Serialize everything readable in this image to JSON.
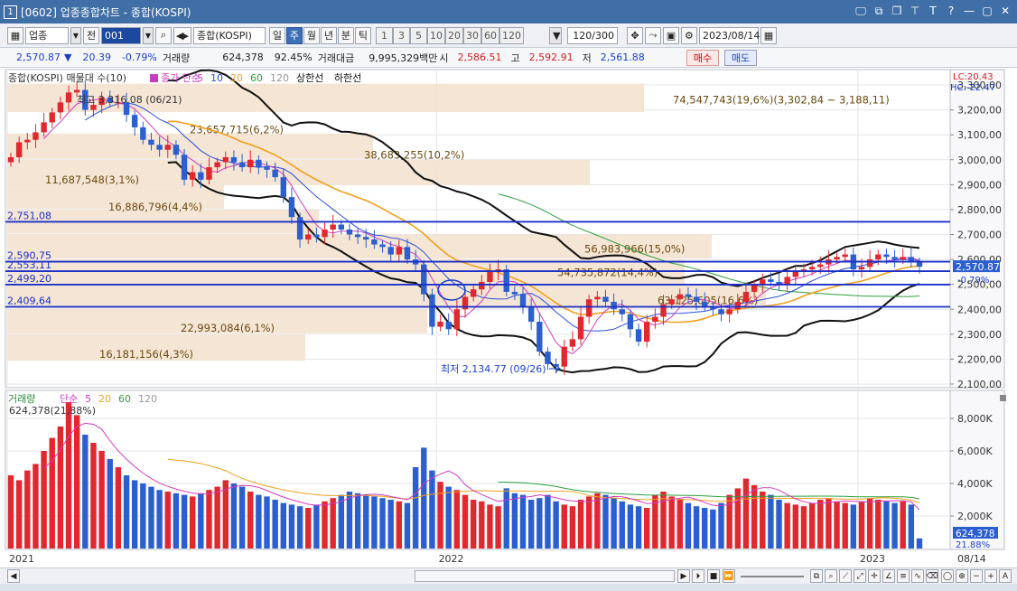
{
  "window": {
    "num_badge": "1",
    "title": "[0602] 업종종합차트 - 종합(KOSPI)",
    "icons": [
      "monitor-icon",
      "restore-icon",
      "copy-icon",
      "pin-icon",
      "text-icon",
      "help-icon",
      "minimize-icon",
      "maximize-icon",
      "close-icon"
    ],
    "icon_glyphs": [
      "🖵",
      "⧉",
      "❐",
      "⊤",
      "T",
      "?",
      "—",
      "▢",
      "✕"
    ]
  },
  "toolbar": {
    "market_label": "업종",
    "pre_label": "전",
    "code_value": "001",
    "name_value": "종합(KOSPI)",
    "periods": [
      "일",
      "주",
      "월",
      "년",
      "분",
      "틱"
    ],
    "active_period": "주",
    "intervals": [
      "1",
      "3",
      "5",
      "10",
      "20",
      "30",
      "60",
      "120"
    ],
    "count_value": "120/300",
    "date_value": "2023/08/14"
  },
  "quote": {
    "price": "2,570.87",
    "change_arrow": "▼",
    "change": "20.39",
    "change_pct": "-0.79%",
    "volume_label": "거래량",
    "volume": "624,378",
    "volume_ratio": "92.45%",
    "amount_label": "거래대금",
    "amount": "9,995,329백만",
    "open_label": "시",
    "open": "2,586.51",
    "high_label": "고",
    "high": "2,592.91",
    "low_label": "저",
    "low": "2,561.88",
    "buy_label": "매수",
    "sell_label": "매도"
  },
  "price_panel": {
    "legend_title": "종합(KOSPI) 매물대 수(10)",
    "ma_label": "종가 단순",
    "ma_periods": [
      "5",
      "10",
      "20",
      "60",
      "120"
    ],
    "band_labels": [
      "상한선",
      "하한선"
    ],
    "lc_label": "LC:20.43",
    "hc_label": "HC:-22.47",
    "high_annot": "최고 3,316.08 (06/21)",
    "low_annot": "최저 2,134.77 (09/26)",
    "current_price_tag": "2,570.87",
    "current_change_tag": "-0.79%",
    "y_ticks": [
      "3,300,00",
      "3,200,00",
      "3,100,00",
      "3,000,00",
      "2,900,00",
      "2,800,00",
      "2,700,00",
      "2,600,00",
      "2,500,00",
      "2,400,00",
      "2,300,00",
      "2,200,00",
      "2,100,00"
    ],
    "h_lines": [
      "2,751,08",
      "2,590,75",
      "2,553,11",
      "2,499,20",
      "2,409,64"
    ],
    "volume_profile": [
      "74,547,743(19,6%)(3,302,84 ~ 3,188,11)",
      "23,657,715(6,2%)",
      "38,683,255(10,2%)",
      "11,687,548(3,1%)",
      "16,886,796(4,4%)",
      "56,983,966(15,0%)",
      "54,735,872(14,4%)",
      "63,125,605(16,6%)",
      "22,993,084(6,1%)",
      "16,181,156(4,3%)"
    ]
  },
  "volume_panel": {
    "legend_title": "거래량",
    "ma_label": "단순",
    "ma_periods": [
      "5",
      "20",
      "60",
      "120"
    ],
    "max_annot": "624,378(21,88%)",
    "y_ticks": [
      "8,000K",
      "6,000K",
      "4,000K",
      "2,000K"
    ],
    "current_tag": "624,378",
    "current_pct_tag": "21.88%"
  },
  "x_axis": {
    "labels": [
      "2021",
      "2022",
      "2023",
      "08/14"
    ]
  },
  "chart_data": {
    "type": "candlestick",
    "period": "weekly",
    "ylim": [
      2100,
      3340
    ],
    "y_tick_values": [
      3300,
      3200,
      3100,
      3000,
      2900,
      2800,
      2700,
      2600,
      2500,
      2400,
      2300,
      2200,
      2100
    ],
    "series_close": [
      3010,
      3070,
      3080,
      3110,
      3150,
      3190,
      3230,
      3270,
      3280,
      3200,
      3220,
      3250,
      3230,
      3230,
      3180,
      3130,
      3080,
      3060,
      3040,
      3060,
      3020,
      2920,
      2950,
      2920,
      2970,
      2990,
      3010,
      2990,
      2970,
      3000,
      2970,
      2960,
      2930,
      2850,
      2770,
      2680,
      2700,
      2690,
      2720,
      2740,
      2720,
      2700,
      2690,
      2680,
      2660,
      2650,
      2620,
      2650,
      2600,
      2580,
      2460,
      2330,
      2350,
      2320,
      2400,
      2450,
      2480,
      2510,
      2550,
      2560,
      2470,
      2460,
      2410,
      2350,
      2230,
      2180,
      2170,
      2250,
      2280,
      2370,
      2440,
      2450,
      2430,
      2400,
      2380,
      2320,
      2270,
      2350,
      2370,
      2420,
      2440,
      2460,
      2450,
      2430,
      2410,
      2400,
      2380,
      2400,
      2430,
      2470,
      2500,
      2520,
      2510,
      2500,
      2530,
      2550,
      2560,
      2570,
      2580,
      2600,
      2610,
      2620,
      2560,
      2570,
      2600,
      2620,
      2610,
      2600,
      2610,
      2590,
      2571
    ],
    "volume_max_k": 9000,
    "series_volume_k": [
      4500,
      4200,
      4800,
      5200,
      6000,
      6800,
      7500,
      9000,
      8200,
      7000,
      6500,
      6000,
      5500,
      5000,
      4500,
      4200,
      4000,
      3800,
      3600,
      3500,
      3400,
      3300,
      3200,
      3400,
      3600,
      3800,
      4200,
      4000,
      3800,
      3500,
      3300,
      3200,
      3000,
      2800,
      2700,
      2600,
      2500,
      2700,
      2900,
      3100,
      3300,
      3500,
      3400,
      3300,
      3200,
      3100,
      3000,
      2900,
      2800,
      5000,
      6200,
      4800,
      4100,
      3800,
      3600,
      3300,
      3000,
      2900,
      2700,
      2600,
      3700,
      3400,
      3300,
      3000,
      3100,
      3300,
      2900,
      2700,
      2600,
      3000,
      3200,
      3400,
      3300,
      3100,
      2900,
      2700,
      2600,
      2500,
      3300,
      3500,
      3200,
      3000,
      2800,
      2600,
      2500,
      2400,
      2800,
      3300,
      3700,
      4300,
      3900,
      3500,
      3300,
      3000,
      2800,
      2700,
      2600,
      2800,
      3000,
      3100,
      2900,
      2800,
      2700,
      2900,
      3100,
      3000,
      2900,
      2800,
      2900,
      2700,
      624
    ]
  }
}
